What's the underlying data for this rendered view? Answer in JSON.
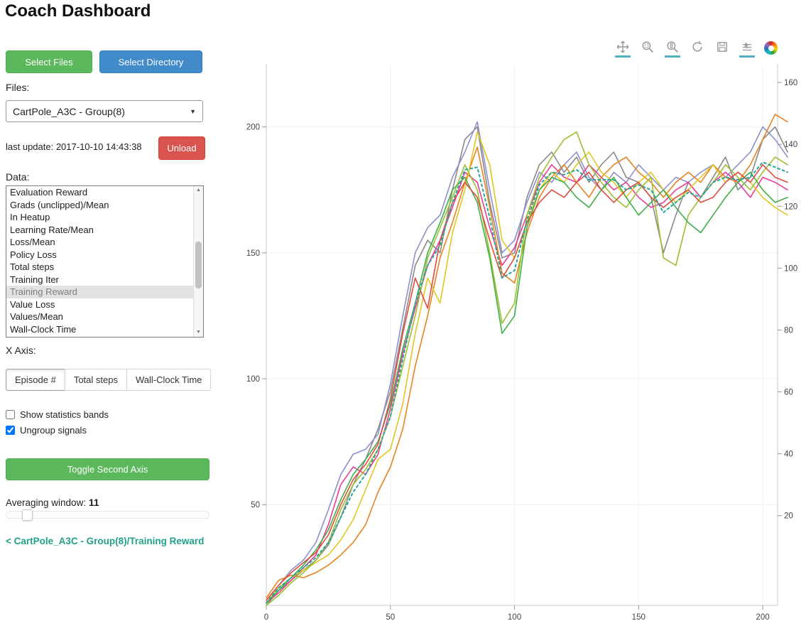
{
  "header": {
    "title": "Coach Dashboard"
  },
  "sidebar": {
    "select_files_label": "Select Files",
    "select_directory_label": "Select Directory",
    "files_label": "Files:",
    "files_select_value": "CartPole_A3C - Group(8)",
    "last_update_label": "last update: 2017-10-10 14:43:38",
    "unload_label": "Unload",
    "data_label": "Data:",
    "data_items": [
      "Evaluation Reward",
      "Grads (unclipped)/Mean",
      "In Heatup",
      "Learning Rate/Mean",
      "Loss/Mean",
      "Policy Loss",
      "Total steps",
      "Training Iter",
      "Training Reward",
      "Value Loss",
      "Values/Mean",
      "Wall-Clock Time"
    ],
    "data_selected": "Training Reward",
    "x_axis_label": "X Axis:",
    "x_axis_options": [
      "Episode #",
      "Total steps",
      "Wall-Clock Time"
    ],
    "x_axis_selected": "Episode #",
    "show_bands_label": "Show statistics bands",
    "show_bands_checked": false,
    "ungroup_label": "Ungroup signals",
    "ungroup_checked": true,
    "toggle_second_axis_label": "Toggle Second Axis",
    "averaging_label": "Averaging window:",
    "averaging_value": "11",
    "breadcrumb": "< CartPole_A3C - Group(8)/Training Reward"
  },
  "toolbar": {
    "tools": [
      {
        "id": "pan",
        "active": true
      },
      {
        "id": "box-zoom",
        "active": false
      },
      {
        "id": "wheel-zoom",
        "active": true
      },
      {
        "id": "reset",
        "active": false
      },
      {
        "id": "save",
        "active": false
      },
      {
        "id": "hover",
        "active": true
      }
    ],
    "logo": "bokeh-logo",
    "active_color": "#4fb0c1"
  },
  "chart_data": {
    "type": "line",
    "title": "",
    "xlabel": "",
    "ylabel": "",
    "legend_position": "none",
    "grid": true,
    "x_range": [
      0,
      206
    ],
    "y_left_range": [
      10,
      225
    ],
    "y_right_range": [
      -9,
      166
    ],
    "x_ticks": [
      0,
      50,
      100,
      150,
      200
    ],
    "y_left_ticks": [
      50,
      100,
      150,
      200
    ],
    "y_right_ticks": [
      20,
      40,
      60,
      80,
      100,
      120,
      140,
      160
    ],
    "x": [
      0,
      5,
      10,
      15,
      20,
      25,
      30,
      35,
      40,
      45,
      50,
      55,
      60,
      65,
      70,
      75,
      80,
      85,
      90,
      95,
      100,
      105,
      110,
      115,
      120,
      125,
      130,
      135,
      140,
      145,
      150,
      155,
      160,
      165,
      170,
      175,
      180,
      185,
      190,
      195,
      200,
      205,
      210
    ],
    "series": [
      {
        "name": "series_1",
        "color": "#898989",
        "width": 1.6,
        "values": [
          10,
          16,
          20,
          24,
          28,
          34,
          45,
          58,
          68,
          80,
          95,
          120,
          145,
          155,
          150,
          175,
          195,
          200,
          170,
          148,
          150,
          172,
          185,
          190,
          182,
          188,
          178,
          185,
          190,
          180,
          178,
          172,
          150,
          165,
          178,
          172,
          180,
          188,
          175,
          180,
          195,
          200,
          190
        ]
      },
      {
        "name": "series_2",
        "color": "#8d90cc",
        "width": 1.6,
        "values": [
          12,
          18,
          24,
          28,
          35,
          48,
          62,
          70,
          72,
          78,
          98,
          125,
          150,
          160,
          165,
          180,
          190,
          202,
          175,
          150,
          155,
          170,
          182,
          178,
          185,
          190,
          180,
          175,
          182,
          178,
          185,
          180,
          175,
          180,
          178,
          182,
          185,
          180,
          185,
          190,
          200,
          195,
          188
        ]
      },
      {
        "name": "series_3",
        "color": "#ea3b97",
        "width": 1.6,
        "values": [
          11,
          15,
          20,
          25,
          30,
          42,
          58,
          65,
          62,
          70,
          88,
          110,
          128,
          145,
          155,
          168,
          182,
          178,
          160,
          145,
          152,
          165,
          178,
          185,
          180,
          178,
          185,
          180,
          175,
          178,
          172,
          168,
          170,
          175,
          178,
          172,
          178,
          182,
          178,
          172,
          180,
          178,
          175
        ]
      },
      {
        "name": "series_4",
        "color": "#e8821e",
        "width": 1.6,
        "values": [
          13,
          20,
          22,
          21,
          23,
          26,
          30,
          35,
          42,
          55,
          65,
          80,
          105,
          125,
          148,
          162,
          178,
          192,
          168,
          142,
          138,
          158,
          172,
          180,
          185,
          178,
          172,
          180,
          185,
          188,
          182,
          178,
          172,
          178,
          182,
          178,
          185,
          180,
          178,
          185,
          195,
          205,
          202
        ]
      },
      {
        "name": "series_5",
        "color": "#e2c620",
        "width": 1.6,
        "values": [
          12,
          17,
          21,
          24,
          27,
          30,
          36,
          44,
          56,
          68,
          72,
          90,
          118,
          140,
          130,
          158,
          175,
          198,
          185,
          155,
          148,
          162,
          175,
          182,
          178,
          185,
          190,
          182,
          178,
          172,
          178,
          182,
          175,
          170,
          175,
          180,
          185,
          178,
          182,
          178,
          172,
          168,
          165
        ]
      },
      {
        "name": "series_6",
        "color": "#9bbf2e",
        "width": 1.6,
        "values": [
          10,
          14,
          19,
          23,
          28,
          35,
          48,
          58,
          64,
          72,
          85,
          105,
          125,
          148,
          160,
          172,
          185,
          175,
          150,
          122,
          130,
          165,
          180,
          188,
          195,
          198,
          185,
          178,
          172,
          168,
          175,
          180,
          148,
          145,
          165,
          172,
          178,
          185,
          180,
          175,
          182,
          188,
          185
        ]
      },
      {
        "name": "series_7",
        "color": "#3fae49",
        "width": 1.6,
        "values": [
          11,
          16,
          21,
          26,
          32,
          40,
          52,
          62,
          68,
          75,
          90,
          112,
          130,
          150,
          162,
          175,
          180,
          170,
          148,
          118,
          125,
          160,
          175,
          180,
          178,
          172,
          168,
          175,
          180,
          172,
          165,
          170,
          175,
          168,
          162,
          158,
          165,
          172,
          178,
          182,
          175,
          170,
          172
        ]
      },
      {
        "name": "series_8",
        "color": "#e04b3f",
        "width": 1.6,
        "values": [
          12,
          18,
          23,
          27,
          31,
          38,
          50,
          60,
          66,
          74,
          92,
          118,
          140,
          128,
          155,
          170,
          178,
          172,
          155,
          140,
          148,
          162,
          170,
          175,
          172,
          178,
          182,
          175,
          170,
          175,
          178,
          172,
          168,
          172,
          175,
          170,
          172,
          178,
          182,
          178,
          185,
          180,
          178
        ]
      },
      {
        "name": "series_9_mean",
        "color": "#27a59b",
        "width": 2,
        "dash": "3 4",
        "values": [
          11,
          17,
          21,
          25,
          29,
          35,
          45,
          55,
          62,
          72,
          85,
          108,
          130,
          145,
          153,
          170,
          183,
          184,
          164,
          140,
          143,
          163,
          177,
          182,
          181,
          183,
          179,
          179,
          179,
          175,
          177,
          175,
          166,
          170,
          174,
          172,
          178,
          180,
          179,
          180,
          186,
          184,
          182
        ]
      }
    ]
  }
}
